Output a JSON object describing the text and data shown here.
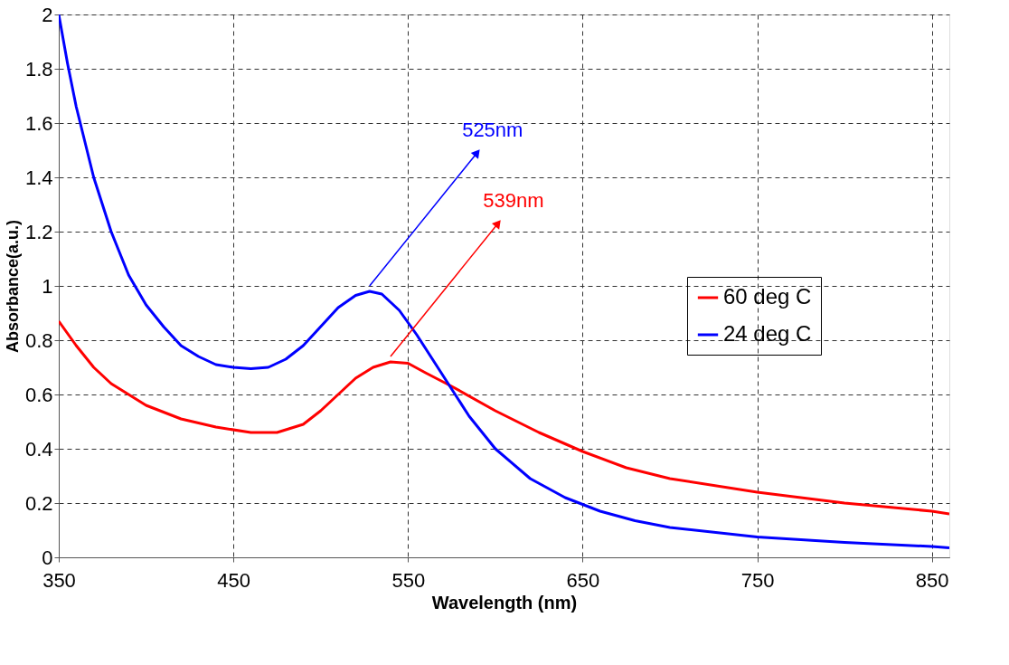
{
  "chart_data": {
    "type": "line",
    "xlabel": "Wavelength (nm)",
    "ylabel": "Absorbance(a.u.)",
    "xlim": [
      350,
      860
    ],
    "xticks": [
      350,
      450,
      550,
      650,
      750,
      850
    ],
    "ylim": [
      0,
      2
    ],
    "yticks": [
      0,
      0.2,
      0.4,
      0.6,
      0.8,
      1,
      1.2,
      1.4,
      1.6,
      1.8,
      2
    ],
    "grid": true,
    "legend": "right",
    "marker": "none",
    "line_style": "solid",
    "series": [
      {
        "name": "60 deg C",
        "color": "#ff0000",
        "x": [
          350,
          360,
          370,
          380,
          400,
          420,
          440,
          460,
          475,
          490,
          500,
          510,
          520,
          530,
          540,
          550,
          560,
          575,
          600,
          625,
          650,
          675,
          700,
          750,
          800,
          850,
          860
        ],
        "values": [
          0.87,
          0.78,
          0.7,
          0.64,
          0.56,
          0.51,
          0.48,
          0.46,
          0.46,
          0.49,
          0.54,
          0.6,
          0.66,
          0.7,
          0.72,
          0.715,
          0.68,
          0.63,
          0.54,
          0.46,
          0.39,
          0.33,
          0.29,
          0.24,
          0.2,
          0.17,
          0.16
        ]
      },
      {
        "name": "24 deg C",
        "color": "#0000ff",
        "x": [
          350,
          355,
          360,
          370,
          380,
          390,
          400,
          410,
          420,
          430,
          440,
          450,
          460,
          470,
          480,
          490,
          500,
          510,
          520,
          528,
          535,
          545,
          555,
          565,
          575,
          585,
          600,
          620,
          640,
          660,
          680,
          700,
          750,
          800,
          850,
          860
        ],
        "values": [
          2.0,
          1.82,
          1.66,
          1.4,
          1.2,
          1.04,
          0.93,
          0.85,
          0.78,
          0.74,
          0.71,
          0.7,
          0.695,
          0.7,
          0.73,
          0.78,
          0.85,
          0.92,
          0.965,
          0.98,
          0.97,
          0.91,
          0.82,
          0.72,
          0.62,
          0.52,
          0.4,
          0.29,
          0.22,
          0.17,
          0.135,
          0.11,
          0.075,
          0.055,
          0.04,
          0.035
        ]
      }
    ],
    "annotations": [
      {
        "text": "525nm",
        "x": 528,
        "y": 0.98
      },
      {
        "text": "539nm",
        "x": 540,
        "y": 0.72
      }
    ]
  }
}
